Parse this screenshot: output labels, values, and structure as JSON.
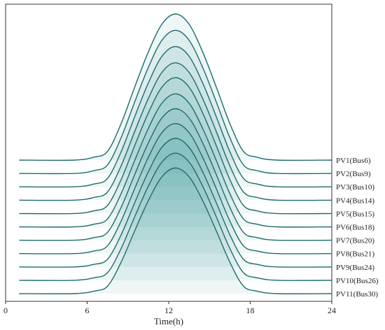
{
  "chart_data": {
    "type": "area",
    "chart_style": "ridgeline",
    "title": "",
    "xlabel": "Time(h)",
    "ylabel": "",
    "xlim": [
      0,
      24
    ],
    "x_ticks": [
      "0",
      "6",
      "12",
      "18",
      "24"
    ],
    "x_tick_values": [
      0,
      6,
      12,
      18,
      24
    ],
    "grid": false,
    "legend_placement": "none",
    "line_color": "#1f6b6e",
    "fill_color": "#2a8b8b",
    "x_start": 1,
    "x_end": 24,
    "peak_time": 12.5,
    "shape": [
      {
        "x": 1,
        "y": 0
      },
      {
        "x": 5,
        "y": 0
      },
      {
        "x": 6.5,
        "y": 0.02
      },
      {
        "x": 7.5,
        "y": 0.06
      },
      {
        "x": 8.5,
        "y": 0.25
      },
      {
        "x": 9.5,
        "y": 0.5
      },
      {
        "x": 10.5,
        "y": 0.74
      },
      {
        "x": 11.5,
        "y": 0.93
      },
      {
        "x": 12.5,
        "y": 1.0
      },
      {
        "x": 13.5,
        "y": 0.93
      },
      {
        "x": 14.5,
        "y": 0.74
      },
      {
        "x": 15.5,
        "y": 0.5
      },
      {
        "x": 16.5,
        "y": 0.25
      },
      {
        "x": 17.5,
        "y": 0.06
      },
      {
        "x": 18.5,
        "y": 0.02
      },
      {
        "x": 20,
        "y": 0
      },
      {
        "x": 24,
        "y": 0
      }
    ],
    "series": [
      {
        "name": "PV1(Bus6)",
        "peak": 1.0
      },
      {
        "name": "PV2(Bus9)",
        "peak": 0.98
      },
      {
        "name": "PV3(Bus10)",
        "peak": 0.96
      },
      {
        "name": "PV4(Bus14)",
        "peak": 0.94
      },
      {
        "name": "PV5(Bus15)",
        "peak": 0.93
      },
      {
        "name": "PV6(Bus18)",
        "peak": 0.91
      },
      {
        "name": "PV7(Bus20)",
        "peak": 0.9
      },
      {
        "name": "PV8(Bus21)",
        "peak": 0.89
      },
      {
        "name": "PV9(Bus24)",
        "peak": 0.88
      },
      {
        "name": "PV10(Bus26)",
        "peak": 0.87
      },
      {
        "name": "PV11(Bus30)",
        "peak": 0.86
      }
    ]
  }
}
